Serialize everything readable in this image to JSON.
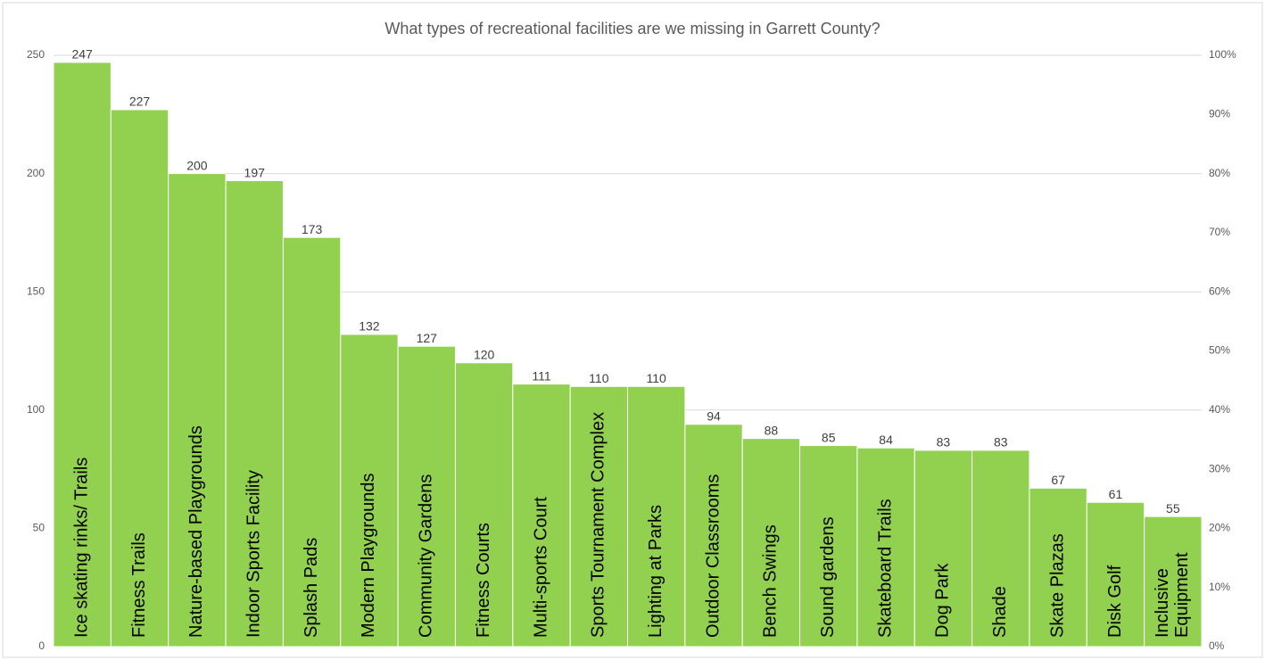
{
  "chart_data": {
    "type": "bar",
    "title": "What types of recreational facilities are we missing in Garrett County?",
    "categories": [
      "Ice skating rinks/ Trails",
      "Fitness Trails",
      "Nature-based Playgrounds",
      "Indoor Sports Facility",
      "Splash Pads",
      "Modern Playgrounds",
      "Community Gardens",
      "Fitness Courts",
      "Multi-sports Court",
      "Sports Tournament Complex",
      "Lighting at Parks",
      "Outdoor Classrooms",
      "Bench Swings",
      "Sound gardens",
      "Skateboard Trails",
      "Dog Park",
      "Shade",
      "Skate Plazas",
      "Disk Golf",
      "Inclusive Equipment"
    ],
    "values": [
      247,
      227,
      200,
      197,
      173,
      132,
      127,
      120,
      111,
      110,
      110,
      94,
      88,
      85,
      84,
      83,
      83,
      67,
      61,
      55
    ],
    "color": "#92d050",
    "ylim": [
      0,
      250
    ],
    "yticks": [
      0,
      50,
      100,
      150,
      200,
      250
    ],
    "y2lim": [
      0,
      100
    ],
    "y2ticks": [
      {
        "value": 0,
        "label": "0%"
      },
      {
        "value": 10,
        "label": "10%"
      },
      {
        "value": 20,
        "label": "20%"
      },
      {
        "value": 30,
        "label": "30%"
      },
      {
        "value": 40,
        "label": "40%"
      },
      {
        "value": 50,
        "label": "50%"
      },
      {
        "value": 60,
        "label": "60%"
      },
      {
        "value": 70,
        "label": "70%"
      },
      {
        "value": 80,
        "label": "80%"
      },
      {
        "value": 90,
        "label": "90%"
      },
      {
        "value": 100,
        "label": "100%"
      }
    ],
    "grid": true
  }
}
